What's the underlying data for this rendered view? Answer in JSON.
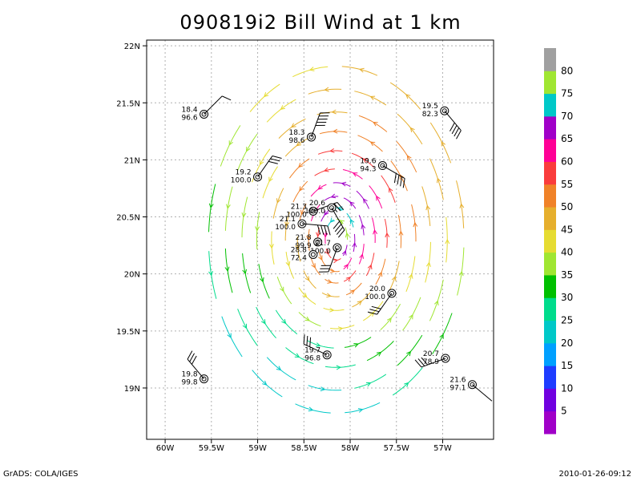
{
  "chart_data": {
    "type": "scatter",
    "title": "090819i2 Bill Wind at 1 km",
    "x_ticks": [
      "60W",
      "59.5W",
      "59W",
      "58.5W",
      "58W",
      "57.5W",
      "57W"
    ],
    "x_tick_values": [
      -60,
      -59.5,
      -59,
      -58.5,
      -58,
      -57.5,
      -57
    ],
    "y_ticks": [
      "22N",
      "21.5N",
      "21N",
      "20.5N",
      "20N",
      "19.5N",
      "19N"
    ],
    "y_tick_values": [
      22,
      21.5,
      21,
      20.5,
      20,
      19.5,
      19
    ],
    "xlim": [
      -60.2,
      -56.45
    ],
    "ylim": [
      18.55,
      22.05
    ],
    "grid": true,
    "storm_center": [
      -58.15,
      20.3
    ],
    "colorbar": {
      "labels": [
        "5",
        "10",
        "15",
        "20",
        "25",
        "30",
        "35",
        "40",
        "45",
        "50",
        "55",
        "60",
        "65",
        "70",
        "75",
        "80"
      ],
      "bounds": [
        0,
        5,
        10,
        15,
        20,
        25,
        30,
        35,
        40,
        45,
        50,
        55,
        60,
        65,
        70,
        75,
        80,
        85
      ],
      "colors": [
        "#a000c8",
        "#7000e0",
        "#1e3cff",
        "#00a0ff",
        "#00c8c8",
        "#00dc8c",
        "#00c000",
        "#a0e632",
        "#e6dc32",
        "#e6af2d",
        "#f08228",
        "#fa3c3c",
        "#ff0096",
        "#a000c8",
        "#00c8c8",
        "#a0e632",
        "#a0a0a0"
      ]
    },
    "observations": [
      {
        "lon": -59.58,
        "lat": 21.4,
        "speed": "18.4",
        "pressure": "96.6",
        "barb_dir": 45,
        "barbs": 1
      },
      {
        "lon": -58.42,
        "lat": 21.2,
        "speed": "18.3",
        "pressure": "98.6",
        "barb_dir": 20,
        "barbs": 5
      },
      {
        "lon": -59.0,
        "lat": 20.85,
        "speed": "19.2",
        "pressure": "100.0",
        "barb_dir": 35,
        "barbs": 3
      },
      {
        "lon": -57.65,
        "lat": 20.95,
        "speed": "19.6",
        "pressure": "94.3",
        "barb_dir": 120,
        "barbs": 4
      },
      {
        "lon": -56.98,
        "lat": 21.43,
        "speed": "19.5",
        "pressure": "82.3",
        "barb_dir": 140,
        "barbs": 4
      },
      {
        "lon": -58.4,
        "lat": 20.55,
        "speed": "21.3",
        "pressure": "100.0",
        "barb_dir": 70,
        "barbs": 3
      },
      {
        "lon": -58.2,
        "lat": 20.58,
        "speed": "20.6",
        "pressure": "100.0",
        "barb_dir": 150,
        "barbs": 4
      },
      {
        "lon": -58.52,
        "lat": 20.44,
        "speed": "21.1",
        "pressure": "100.0",
        "barb_dir": 95,
        "barbs": 4
      },
      {
        "lon": -58.35,
        "lat": 20.28,
        "speed": "21.8",
        "pressure": "99.9",
        "barb_dir": 0,
        "barbs": 0
      },
      {
        "lon": -58.14,
        "lat": 20.23,
        "speed": "21.7",
        "pressure": "100.0",
        "barb_dir": 200,
        "barbs": 3
      },
      {
        "lon": -58.4,
        "lat": 20.17,
        "speed": "28.8",
        "pressure": "72.4",
        "barb_dir": 0,
        "barbs": 0
      },
      {
        "lon": -57.55,
        "lat": 19.83,
        "speed": "20.0",
        "pressure": "100.0",
        "barb_dir": 215,
        "barbs": 3
      },
      {
        "lon": -58.25,
        "lat": 19.29,
        "speed": "19.7",
        "pressure": "96.8",
        "barb_dir": 295,
        "barbs": 3
      },
      {
        "lon": -59.58,
        "lat": 19.08,
        "speed": "19.8",
        "pressure": "99.8",
        "barb_dir": 320,
        "barbs": 3
      },
      {
        "lon": -56.97,
        "lat": 19.26,
        "speed": "20.7",
        "pressure": "78.9",
        "barb_dir": 250,
        "barbs": 3
      },
      {
        "lon": -56.68,
        "lat": 19.03,
        "speed": "21.6",
        "pressure": "97.1",
        "barb_dir": 130,
        "barbs": 0
      }
    ],
    "streamline_rings": [
      {
        "rx_deg": 0.12,
        "ry_deg": 0.18,
        "speed": 68
      },
      {
        "rx_deg": 0.2,
        "ry_deg": 0.28,
        "speed": 64
      },
      {
        "rx_deg": 0.3,
        "ry_deg": 0.38,
        "speed": 60
      },
      {
        "rx_deg": 0.42,
        "ry_deg": 0.5,
        "speed": 56
      },
      {
        "rx_deg": 0.55,
        "ry_deg": 0.62,
        "speed": 52
      },
      {
        "rx_deg": 0.7,
        "ry_deg": 0.78,
        "speed": 48
      },
      {
        "rx_deg": 0.86,
        "ry_deg": 0.95,
        "speed": 45
      },
      {
        "rx_deg": 1.02,
        "ry_deg": 1.12,
        "speed": 42
      },
      {
        "rx_deg": 1.2,
        "ry_deg": 1.32,
        "speed": 40
      },
      {
        "rx_deg": 1.38,
        "ry_deg": 1.52,
        "speed": 38
      }
    ]
  },
  "footer": {
    "left": "GrADS: COLA/IGES",
    "right": "2010-01-26-09:12"
  }
}
